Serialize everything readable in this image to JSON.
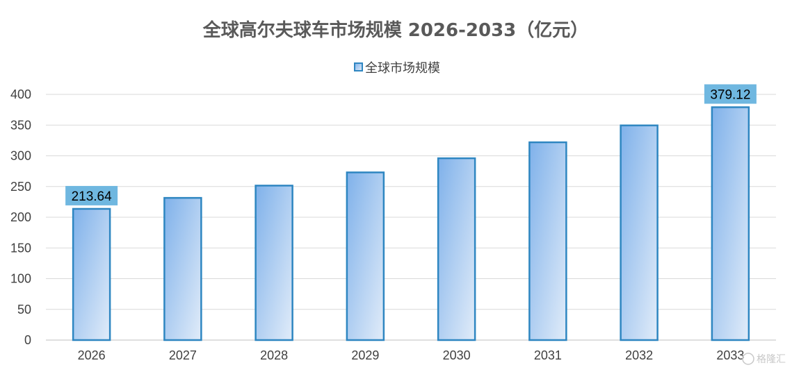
{
  "chart_data": {
    "type": "bar",
    "title": "全球高尔夫球车市场规模 2026-2033（亿元）",
    "categories": [
      "2026",
      "2027",
      "2028",
      "2029",
      "2030",
      "2031",
      "2032",
      "2033"
    ],
    "series": [
      {
        "name": "全球市场规模",
        "values": [
          213.64,
          231.5,
          251.5,
          273.0,
          296.0,
          322.0,
          349.5,
          379.12
        ]
      }
    ],
    "data_labels": [
      {
        "index": 0,
        "text": "213.64"
      },
      {
        "index": 7,
        "text": "379.12"
      }
    ],
    "ylim": [
      0,
      400
    ],
    "yticks": [
      "0",
      "50",
      "100",
      "150",
      "200",
      "250",
      "300",
      "350",
      "400"
    ],
    "xlabel": "",
    "ylabel": "",
    "grid": true,
    "legend_position": "top",
    "colors": {
      "bar_fill_start": "#7fb1ea",
      "bar_fill_end": "#e1ecf9",
      "bar_stroke": "#2e86c1",
      "label_bg": "#6fb7e0",
      "grid": "#d9d9d9"
    }
  },
  "watermark": "格隆汇"
}
